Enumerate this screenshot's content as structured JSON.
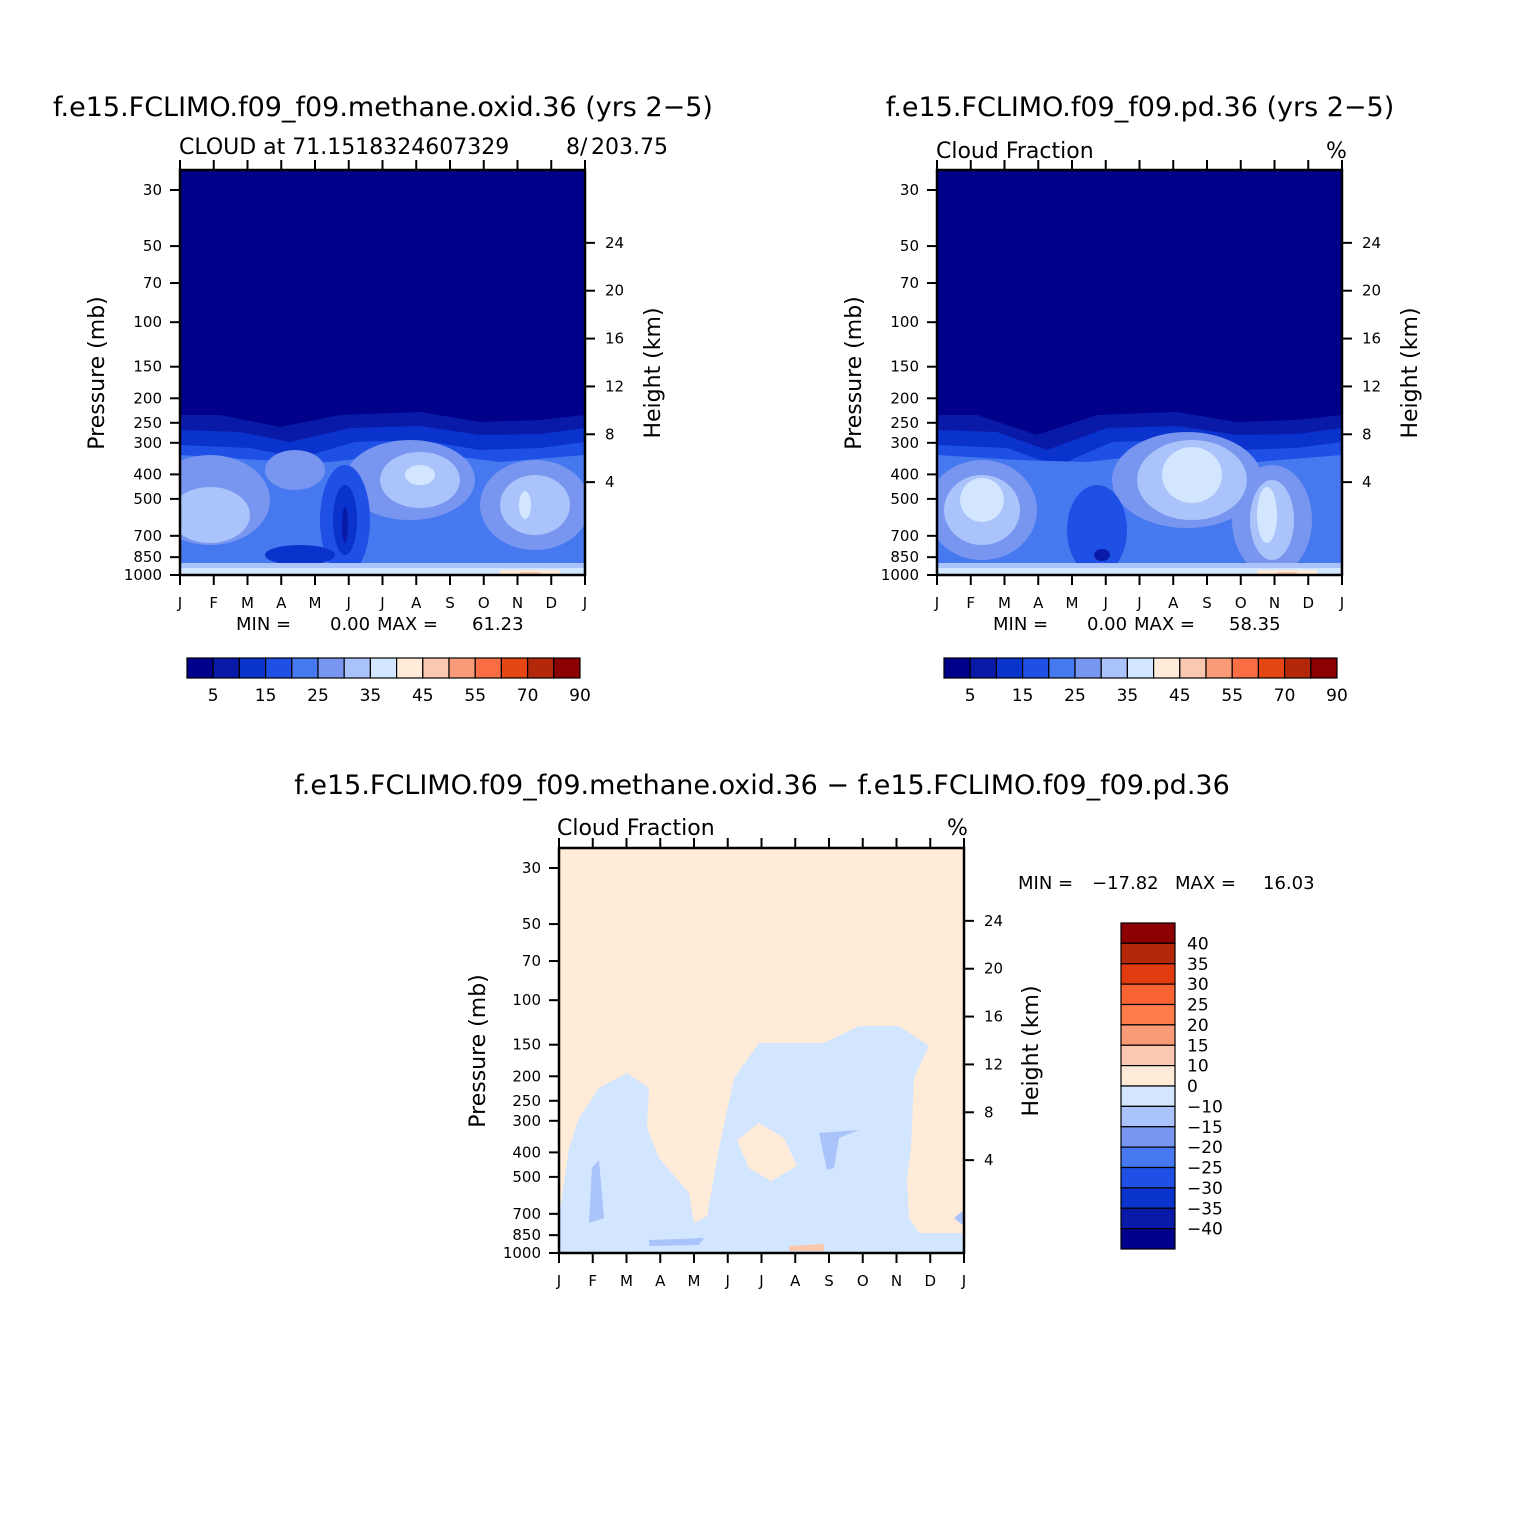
{
  "chart_data": [
    {
      "type": "heatmap",
      "title": "f.e15.FCLIMO.f09_f09.methane.oxid.36 (yrs 2−5)",
      "subtitle_left": "CLOUD at 71.1518324607329",
      "subtitle_mid": "8/",
      "subtitle_right": "203.75",
      "units": "%",
      "xlabel": "",
      "ylabel": "Pressure (mb)",
      "y2label": "Height (km)",
      "x_ticks": [
        "J",
        "F",
        "M",
        "A",
        "M",
        "J",
        "J",
        "A",
        "S",
        "O",
        "N",
        "D",
        "J"
      ],
      "y_ticks": [
        "30",
        "50",
        "70",
        "100",
        "150",
        "200",
        "250",
        "300",
        "400",
        "500",
        "700",
        "850",
        "1000"
      ],
      "y2_ticks": [
        "24",
        "20",
        "16",
        "12",
        "8",
        "4"
      ],
      "ylim": [
        1000,
        30
      ],
      "min_label": "MIN =",
      "min_value": "0.00",
      "max_label": "MAX =",
      "max_value": "61.23",
      "colorbar_labels": [
        "5",
        "15",
        "25",
        "35",
        "45",
        "55",
        "70",
        "90"
      ],
      "pattern": "A"
    },
    {
      "type": "heatmap",
      "title": "f.e15.FCLIMO.f09_f09.pd.36 (yrs 2−5)",
      "subtitle_left": "Cloud Fraction",
      "units": "%",
      "xlabel": "",
      "ylabel": "Pressure (mb)",
      "y2label": "Height (km)",
      "x_ticks": [
        "J",
        "F",
        "M",
        "A",
        "M",
        "J",
        "J",
        "A",
        "S",
        "O",
        "N",
        "D",
        "J"
      ],
      "y_ticks": [
        "30",
        "50",
        "70",
        "100",
        "150",
        "200",
        "250",
        "300",
        "400",
        "500",
        "700",
        "850",
        "1000"
      ],
      "y2_ticks": [
        "24",
        "20",
        "16",
        "12",
        "8",
        "4"
      ],
      "ylim": [
        1000,
        30
      ],
      "min_label": "MIN =",
      "min_value": "0.00",
      "max_label": "MAX =",
      "max_value": "58.35",
      "colorbar_labels": [
        "5",
        "15",
        "25",
        "35",
        "45",
        "55",
        "70",
        "90"
      ],
      "pattern": "B"
    },
    {
      "type": "heatmap",
      "title": "f.e15.FCLIMO.f09_f09.methane.oxid.36 − f.e15.FCLIMO.f09_f09.pd.36",
      "subtitle_left": "Cloud Fraction",
      "units": "%",
      "xlabel": "",
      "ylabel": "Pressure (mb)",
      "y2label": "Height (km)",
      "x_ticks": [
        "J",
        "F",
        "M",
        "A",
        "M",
        "J",
        "J",
        "A",
        "S",
        "O",
        "N",
        "D",
        "J"
      ],
      "y_ticks": [
        "30",
        "50",
        "70",
        "100",
        "150",
        "200",
        "250",
        "300",
        "400",
        "500",
        "700",
        "850",
        "1000"
      ],
      "y2_ticks": [
        "24",
        "20",
        "16",
        "12",
        "8",
        "4"
      ],
      "ylim": [
        1000,
        30
      ],
      "min_label": "MIN =",
      "min_value": "−17.82",
      "max_label": "MAX =",
      "max_value": "16.03",
      "colorbar_labels": [
        "40",
        "35",
        "30",
        "25",
        "20",
        "15",
        "10",
        "0",
        "−10",
        "−15",
        "−20",
        "−25",
        "−30",
        "−35",
        "−40"
      ],
      "pattern": "D"
    }
  ],
  "colors": {
    "seq_scale": [
      "#00008b",
      "#0a1aa8",
      "#0a32cc",
      "#1e50e6",
      "#4678f0",
      "#7896f0",
      "#aac3fa",
      "#d2e6ff",
      "#ffebd7",
      "#fac8af",
      "#fa9b78",
      "#fa6e46",
      "#e64614",
      "#b4280a",
      "#8b0000"
    ],
    "diff_scale": [
      "#8b0000",
      "#b4280a",
      "#e03c0f",
      "#fa6432",
      "#ff7d4b",
      "#fa9b78",
      "#fac8af",
      "#ffebd7",
      "#d2e6ff",
      "#aac3fa",
      "#7896f0",
      "#4678f0",
      "#1e50e6",
      "#0a32cc",
      "#0a1aa8",
      "#00008b"
    ]
  }
}
